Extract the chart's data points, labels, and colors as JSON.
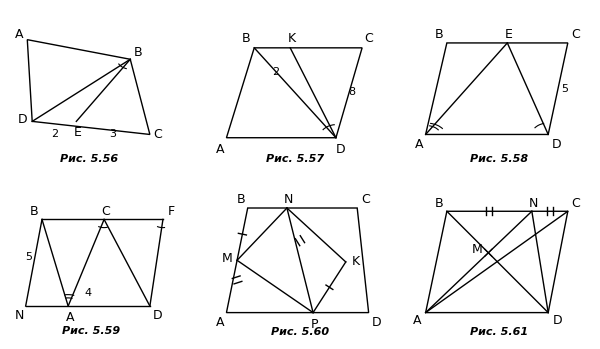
{
  "fig_title_fontsize": 8,
  "label_fontsize": 9,
  "bg_color": "#ffffff",
  "line_color": "#000000",
  "captions": [
    "Рис. 5.56",
    "Рис. 5.57",
    "Рис. 5.58",
    "Рис. 5.59",
    "Рис. 5.60",
    "Рис. 5.61"
  ]
}
